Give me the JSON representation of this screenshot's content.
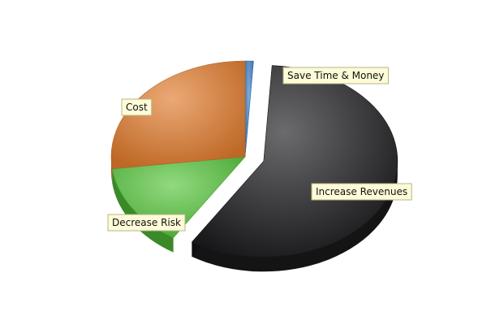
{
  "chart_data": {
    "type": "pie",
    "title": "",
    "style": "3d-exploded",
    "start_angle_deg": 0,
    "slices": [
      {
        "label": "Save Time & Money",
        "value": 1,
        "color": "#3b7fc4",
        "exploded": false
      },
      {
        "label": "Increase Revenues",
        "value": 58,
        "color": "#1c1c1e",
        "exploded": true
      },
      {
        "label": "Decrease Risk",
        "value": 14,
        "color": "#55c43b",
        "exploded": false
      },
      {
        "label": "Cost",
        "value": 27,
        "color": "#e07a2c",
        "exploded": false
      }
    ],
    "legend": "none",
    "label_style": "callout-boxes"
  }
}
